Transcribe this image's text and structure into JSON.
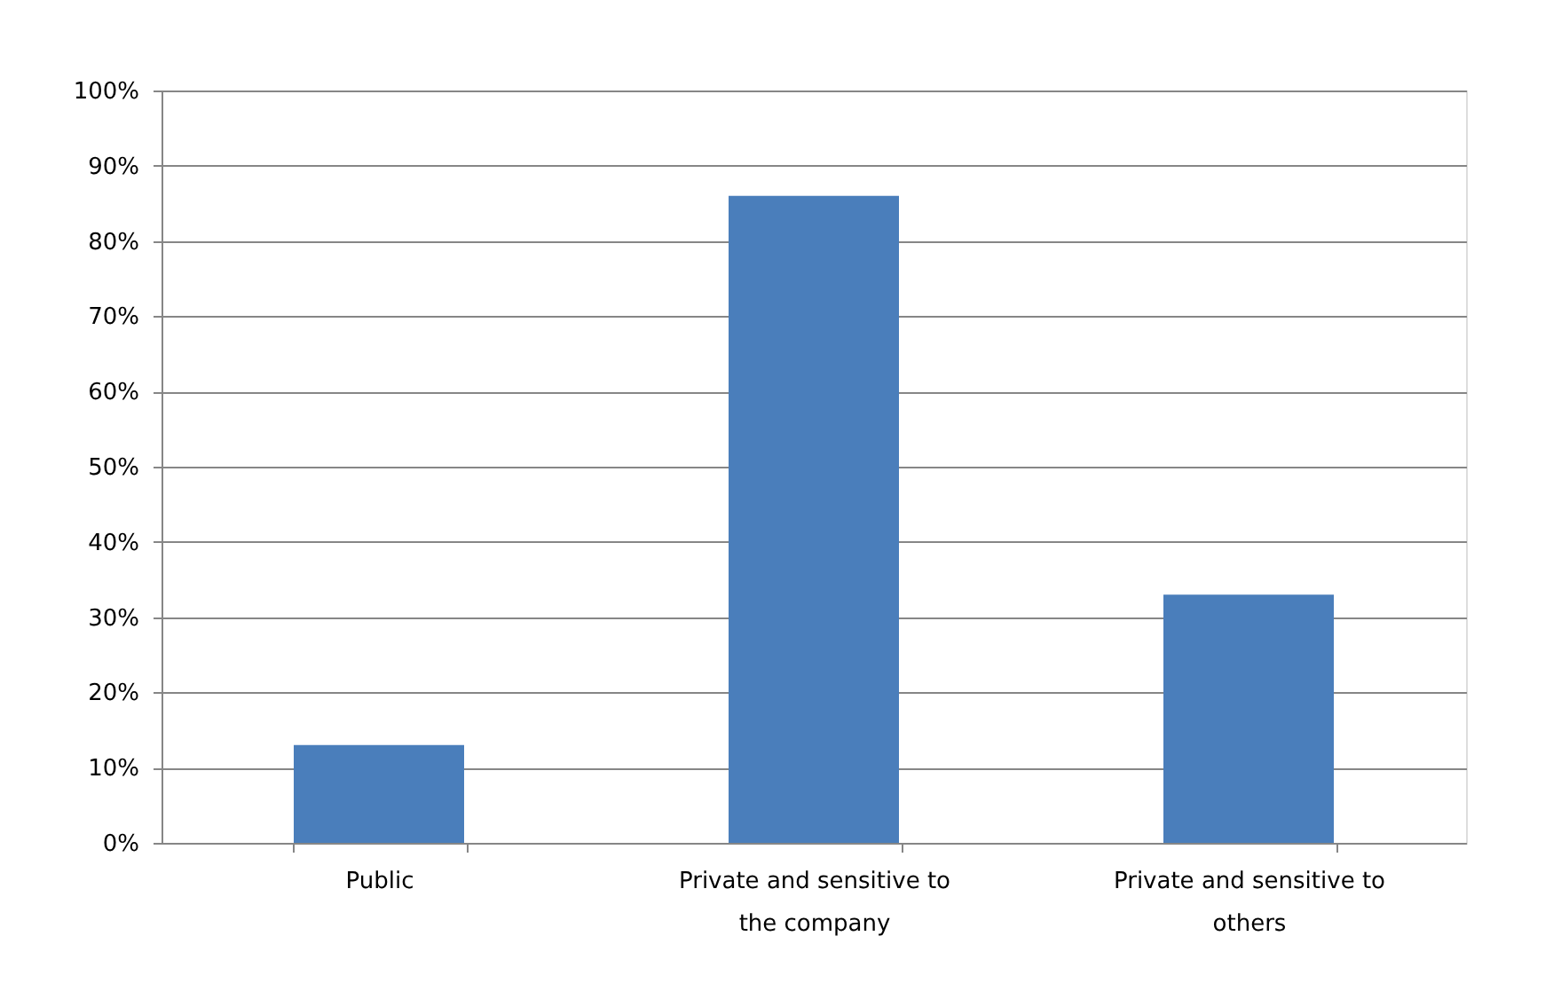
{
  "chart_data": {
    "type": "bar",
    "categories": [
      "Public",
      "Private and sensitive to the company",
      "Private and sensitive to others"
    ],
    "values": [
      13,
      86,
      33
    ],
    "color": "#4a7ebb",
    "ylim": [
      0,
      100
    ],
    "yticks": [
      {
        "value": 0,
        "label": "0%"
      },
      {
        "value": 10,
        "label": "10%"
      },
      {
        "value": 20,
        "label": "20%"
      },
      {
        "value": 30,
        "label": "30%"
      },
      {
        "value": 40,
        "label": "40%"
      },
      {
        "value": 50,
        "label": "50%"
      },
      {
        "value": 60,
        "label": "60%"
      },
      {
        "value": 70,
        "label": "70%"
      },
      {
        "value": 80,
        "label": "80%"
      },
      {
        "value": 90,
        "label": "90%"
      },
      {
        "value": 100,
        "label": "100%"
      }
    ],
    "grid": "y"
  }
}
